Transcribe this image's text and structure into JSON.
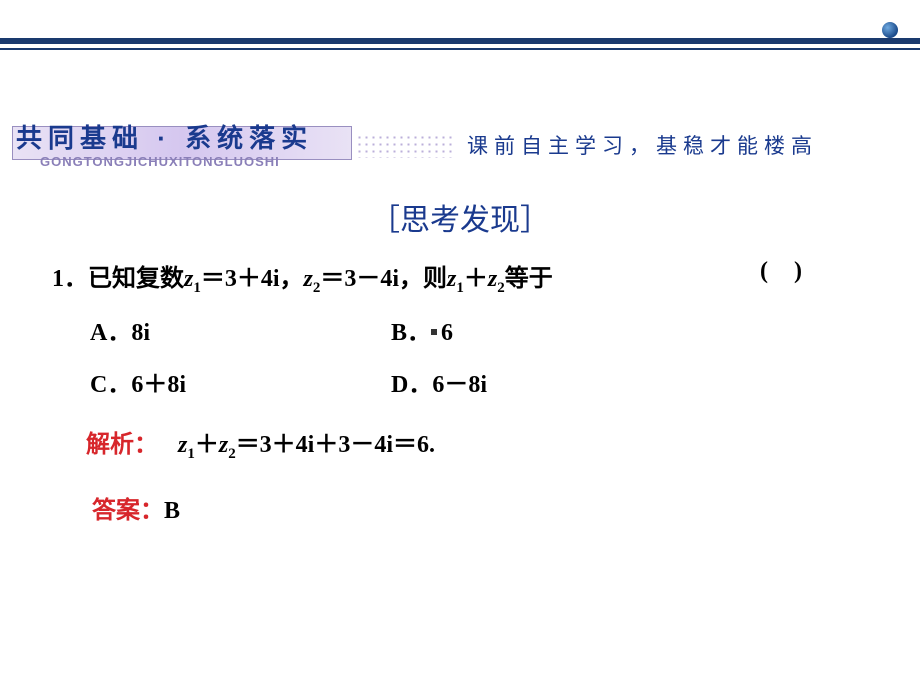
{
  "decor": {
    "top_bar_color": "#1a3a6e",
    "dot_gradient_from": "#6fa9e0",
    "dot_gradient_to": "#1a4a8a"
  },
  "header": {
    "title_main": "共同基础 · 系统落实",
    "title_pinyin": "GONGTONGJICHUXITONGLUOSHI",
    "title_color": "#1a3a8e",
    "pinyin_color": "#8a7fb8",
    "band_bg_from": "#e9e2f5",
    "band_bg_to": "#d5c7ef",
    "right_text": "课前自主学习，基稳才能楼高",
    "right_text_color": "#1a3a8e"
  },
  "section": {
    "title": "［思考发现］",
    "title_color": "#1a3a8e",
    "title_fontsize": 30
  },
  "question": {
    "number": "1．",
    "stem_prefix": "已知复数",
    "z1_label": "z",
    "z1_sub": "1",
    "z1_eq": "＝3＋4i，",
    "z2_label": "z",
    "z2_sub": "2",
    "z2_eq": "＝3－4i，则",
    "sum_z1": "z",
    "sum_z1_sub": "1",
    "sum_plus": "＋",
    "sum_z2": "z",
    "sum_z2_sub": "2",
    "stem_suffix": "等于",
    "paren": "()"
  },
  "options": {
    "A_label": "A．",
    "A_value": "8i",
    "B_label": "B．",
    "B_value": "6",
    "C_label": "C．",
    "C_value": "6＋8i",
    "D_label": "D．",
    "D_value": "6－8i"
  },
  "explanation": {
    "label": "解析：",
    "label_color": "#d7262b",
    "body_prefix": "",
    "z1": "z",
    "z1_sub": "1",
    "plus": "＋",
    "z2": "z",
    "z2_sub": "2",
    "eq": "＝3＋4i＋3－4i＝6."
  },
  "answer": {
    "label": "答案：",
    "label_color": "#d7262b",
    "value": "B"
  }
}
